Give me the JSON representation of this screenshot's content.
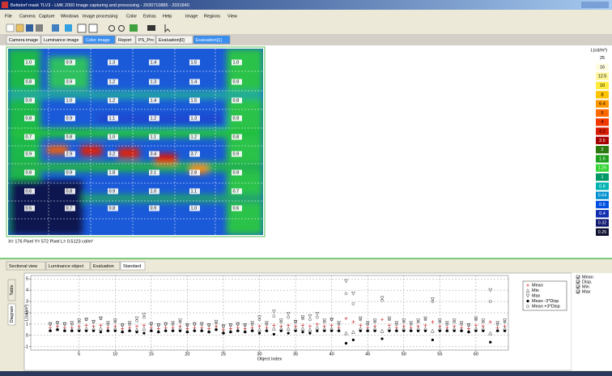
{
  "window": {
    "title": "Bettstorf mask TLV3 - LMK 2000 Image capturing and processing - 2030710885 - 2031840"
  },
  "menu": {
    "left": [
      "File",
      "Camera",
      "Capture",
      "Windows",
      "Image processing",
      "Color",
      "Extras",
      "Help"
    ],
    "right": [
      "Image",
      "Regions",
      "View"
    ]
  },
  "tabs": [
    "Camera image",
    "Luminance image",
    "Color image",
    "Report",
    "PS_Pro",
    "Evaluation[0]",
    "Evaluation[1]"
  ],
  "selected_tabs": [
    2,
    6
  ],
  "image": {
    "labels": [
      [
        "1.0",
        "0.9",
        "1.3",
        "1.4",
        "1.5",
        "1.0"
      ],
      [
        "0.8",
        "0.9",
        "1.2",
        "1.3",
        "1.4",
        "0.9"
      ],
      [
        "0.9",
        "1.0",
        "1.2",
        "1.4",
        "1.5",
        "0.8"
      ],
      [
        "0.8",
        "0.9",
        "1.1",
        "1.2",
        "1.3",
        "0.9"
      ],
      [
        "0.7",
        "0.8",
        "1.0",
        "1.1",
        "1.2",
        "0.8"
      ],
      [
        "0.9",
        "2.9",
        "3.2",
        "3.4",
        "3.7",
        "0.9"
      ],
      [
        "0.8",
        "0.9",
        "1.8",
        "2.1",
        "2.8",
        "0.9"
      ],
      [
        "0.6",
        "0.8",
        "0.9",
        "1.0",
        "1.1",
        "0.7"
      ],
      [
        "0.5",
        "0.7",
        "0.8",
        "0.9",
        "1.0",
        "0.6"
      ]
    ]
  },
  "scale": {
    "title": "L(cd/m²)",
    "labels": [
      25,
      16,
      12.5,
      10,
      8,
      6.4,
      5,
      4,
      3.2,
      2.5,
      2,
      1.6,
      1.25,
      1,
      0.8,
      0.64,
      0.5,
      0.4,
      0.32,
      0.25
    ],
    "colors": [
      "#ffffff",
      "#fffbe0",
      "#fff59a",
      "#ffeb3b",
      "#ffc400",
      "#ff9800",
      "#ff6a00",
      "#f23a00",
      "#d81b00",
      "#a50000",
      "#2a7a10",
      "#1ea01e",
      "#33d633",
      "#009966",
      "#00b3b3",
      "#0090d0",
      "#0050e0",
      "#1030b0",
      "#101870",
      "#101030"
    ]
  },
  "status": "X= 176 Pixel  Y= 572 Pixel  L= 0.5123 cd/m²",
  "bottom_tabs": [
    "Sectional view",
    "Luminance object",
    "Evaluation",
    "Standard"
  ],
  "side_tabs": [
    "Table",
    "Diagram"
  ],
  "checkboxes": [
    "Mean",
    "Disp.",
    "Min",
    "Max"
  ],
  "plot": {
    "type": "scatter",
    "xlabel": "Object index",
    "ylabel": "L(cd/m²)",
    "x": [
      1,
      2,
      3,
      4,
      5,
      6,
      7,
      8,
      9,
      10,
      11,
      12,
      13,
      14,
      15,
      16,
      17,
      18,
      19,
      20,
      21,
      22,
      23,
      24,
      25,
      26,
      27,
      28,
      29,
      30,
      31,
      32,
      33,
      34,
      35,
      36,
      37,
      38,
      39,
      40,
      41,
      42,
      43,
      44,
      45,
      46,
      47,
      48,
      49,
      50,
      51,
      52,
      53,
      54,
      55,
      56,
      57,
      58,
      59,
      60,
      61,
      62,
      63,
      64
    ],
    "xlim": [
      -1.7,
      64.5
    ],
    "xticks": [
      5,
      10,
      15,
      20,
      25,
      30,
      35,
      40,
      45,
      50,
      55,
      60
    ],
    "ylim": [
      -1.3,
      5.3
    ],
    "yticks": [
      -1,
      0,
      1,
      2,
      3,
      4,
      5
    ],
    "grid": true,
    "series": [
      {
        "name": "Mean",
        "color": "#d02020",
        "marker": "plus",
        "values": [
          0.7,
          0.8,
          0.7,
          0.7,
          0.8,
          0.9,
          0.8,
          0.9,
          0.7,
          0.8,
          0.6,
          0.7,
          0.8,
          0.9,
          0.7,
          0.6,
          0.7,
          0.7,
          0.8,
          0.6,
          0.7,
          0.7,
          0.6,
          0.8,
          0.5,
          0.6,
          0.7,
          0.6,
          0.7,
          0.8,
          0.7,
          0.9,
          0.8,
          0.9,
          0.8,
          0.9,
          0.8,
          1.0,
          0.8,
          0.9,
          0.7,
          1.5,
          1.2,
          0.9,
          0.7,
          0.8,
          1.4,
          0.9,
          0.7,
          0.8,
          0.7,
          0.8,
          0.9,
          1.2,
          0.8,
          0.7,
          0.8,
          0.7,
          0.6,
          0.9,
          0.8,
          1.2,
          0.7,
          0.8
        ]
      },
      {
        "name": "Min",
        "color": "#404040",
        "marker": "tri-up",
        "values": [
          0.5,
          0.6,
          0.5,
          0.5,
          0.6,
          0.6,
          0.6,
          0.6,
          0.5,
          0.6,
          0.4,
          0.5,
          0.5,
          0.6,
          0.5,
          0.4,
          0.5,
          0.5,
          0.6,
          0.4,
          0.5,
          0.5,
          0.4,
          0.6,
          0.3,
          0.4,
          0.5,
          0.4,
          0.5,
          0.5,
          0.5,
          0.6,
          0.6,
          0.6,
          0.6,
          0.6,
          0.5,
          0.7,
          0.6,
          0.6,
          0.5,
          0.2,
          0.3,
          0.6,
          0.5,
          0.6,
          0.4,
          0.6,
          0.5,
          0.6,
          0.5,
          0.6,
          0.6,
          0.4,
          0.6,
          0.5,
          0.6,
          0.5,
          0.4,
          0.6,
          0.6,
          0.2,
          0.5,
          0.6
        ]
      },
      {
        "name": "Max",
        "color": "#404040",
        "marker": "tri-down",
        "values": [
          1.0,
          1.1,
          1.0,
          1.1,
          1.3,
          1.4,
          1.2,
          1.5,
          1.1,
          1.3,
          0.9,
          1.1,
          1.5,
          1.8,
          1.0,
          0.9,
          1.0,
          1.1,
          1.3,
          0.9,
          1.0,
          1.0,
          0.9,
          1.2,
          0.8,
          0.9,
          1.0,
          0.9,
          1.1,
          1.6,
          1.1,
          2.1,
          1.3,
          1.9,
          1.2,
          1.6,
          1.7,
          1.9,
          1.3,
          1.4,
          1.1,
          4.8,
          3.7,
          1.5,
          1.1,
          1.3,
          3.3,
          1.5,
          1.1,
          1.3,
          1.1,
          1.3,
          1.5,
          3.2,
          1.3,
          1.1,
          1.3,
          1.1,
          0.9,
          1.5,
          1.3,
          4.0,
          1.1,
          1.3
        ]
      },
      {
        "name": "Mean -3*Disp",
        "color": "#000000",
        "marker": "dot",
        "values": [
          0.4,
          0.5,
          0.4,
          0.4,
          0.4,
          0.4,
          0.4,
          0.3,
          0.4,
          0.4,
          0.3,
          0.4,
          0.3,
          0.2,
          0.4,
          0.3,
          0.4,
          0.4,
          0.4,
          0.3,
          0.4,
          0.4,
          0.3,
          0.5,
          0.2,
          0.3,
          0.4,
          0.3,
          0.4,
          0.2,
          0.4,
          0.1,
          0.4,
          0.2,
          0.4,
          0.3,
          0.2,
          0.4,
          0.4,
          0.4,
          0.4,
          -0.7,
          -0.4,
          0.4,
          0.4,
          0.4,
          -0.3,
          0.4,
          0.4,
          0.4,
          0.4,
          0.4,
          0.4,
          -0.4,
          0.4,
          0.4,
          0.4,
          0.4,
          0.3,
          0.4,
          0.4,
          -0.6,
          0.4,
          0.4
        ]
      },
      {
        "name": "Mean +3*Disp",
        "color": "#404040",
        "marker": "circle",
        "values": [
          1.0,
          1.1,
          1.0,
          1.0,
          1.2,
          1.4,
          1.2,
          1.5,
          1.0,
          1.2,
          0.9,
          1.0,
          1.3,
          1.6,
          1.0,
          0.9,
          1.0,
          1.0,
          1.2,
          0.9,
          1.0,
          1.0,
          0.9,
          1.1,
          0.8,
          0.9,
          1.0,
          0.9,
          1.0,
          1.4,
          1.0,
          1.7,
          1.2,
          1.6,
          1.2,
          1.5,
          1.4,
          1.6,
          1.2,
          1.4,
          1.0,
          3.7,
          2.8,
          1.4,
          1.0,
          1.2,
          3.1,
          1.4,
          1.0,
          1.2,
          1.0,
          1.2,
          1.4,
          3.0,
          1.2,
          1.0,
          1.2,
          1.0,
          0.9,
          1.4,
          1.2,
          3.0,
          1.0,
          1.2
        ]
      }
    ]
  }
}
